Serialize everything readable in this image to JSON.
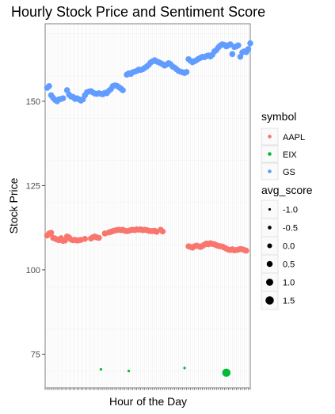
{
  "chart_data": {
    "type": "scatter",
    "title": "Hourly Stock Price and Sentiment Score",
    "xlabel": "Hour of the Day",
    "ylabel": "Stock Price",
    "ylim": [
      65,
      173
    ],
    "xlim": [
      0,
      103
    ],
    "yticks": [
      75,
      100,
      125,
      150
    ],
    "x_tick_labels_shown": false,
    "grid": true,
    "panel_background": "#ffffff",
    "series": [
      {
        "name": "AAPL",
        "color": "#F8766D",
        "points": [
          [
            1,
            110.2
          ],
          [
            2,
            110.8
          ],
          [
            3,
            111.0
          ],
          [
            4,
            109.5
          ],
          [
            5,
            109.3
          ],
          [
            6,
            109.0
          ],
          [
            7,
            108.8
          ],
          [
            8,
            109.4
          ],
          [
            9,
            108.6
          ],
          [
            10,
            108.7
          ],
          [
            11,
            109.9
          ],
          [
            12,
            109.6
          ],
          [
            13,
            109.0
          ],
          [
            14,
            108.8
          ],
          [
            15,
            108.9
          ],
          [
            16,
            108.7
          ],
          [
            17,
            108.8
          ],
          [
            18,
            108.9
          ],
          [
            20,
            109.2
          ],
          [
            23,
            109.3
          ],
          [
            24,
            109.7
          ],
          [
            25,
            109.9
          ],
          [
            26,
            109.6
          ],
          [
            27,
            109.5
          ],
          [
            30,
            110.8
          ],
          [
            32,
            111.1
          ],
          [
            33,
            111.3
          ],
          [
            34,
            111.5
          ],
          [
            35,
            111.7
          ],
          [
            36,
            111.8
          ],
          [
            37,
            111.9
          ],
          [
            38,
            111.8
          ],
          [
            39,
            111.9
          ],
          [
            40,
            111.6
          ],
          [
            41,
            111.5
          ],
          [
            42,
            111.6
          ],
          [
            43,
            111.8
          ],
          [
            44,
            111.9
          ],
          [
            45,
            111.8
          ],
          [
            46,
            112.0
          ],
          [
            47,
            111.9
          ],
          [
            48,
            112.0
          ],
          [
            49,
            111.8
          ],
          [
            50,
            111.9
          ],
          [
            51,
            111.8
          ],
          [
            52,
            111.6
          ],
          [
            53,
            111.5
          ],
          [
            54,
            111.5
          ],
          [
            55,
            111.6
          ],
          [
            56,
            111.3
          ],
          [
            58,
            111.9
          ],
          [
            59,
            111.4
          ],
          [
            72,
            107.0
          ],
          [
            73,
            106.8
          ],
          [
            74,
            106.6
          ],
          [
            75,
            107.0
          ],
          [
            76,
            107.2
          ],
          [
            77,
            107.0
          ],
          [
            78,
            106.8
          ],
          [
            79,
            107.1
          ],
          [
            80,
            107.5
          ],
          [
            81,
            107.8
          ],
          [
            82,
            107.6
          ],
          [
            83,
            107.9
          ],
          [
            84,
            107.7
          ],
          [
            85,
            107.6
          ],
          [
            86,
            107.3
          ],
          [
            87,
            107.1
          ],
          [
            88,
            107.0
          ],
          [
            89,
            106.9
          ],
          [
            90,
            106.6
          ],
          [
            91,
            106.3
          ],
          [
            92,
            106.0
          ],
          [
            93,
            105.9
          ],
          [
            94,
            106.1
          ],
          [
            95,
            105.8
          ],
          [
            96,
            105.9
          ],
          [
            97,
            106.0
          ],
          [
            98,
            106.2
          ],
          [
            99,
            106.1
          ],
          [
            100,
            105.9
          ],
          [
            101,
            105.7
          ]
        ],
        "score": 0.5
      },
      {
        "name": "EIX",
        "color": "#00BA38",
        "points": [
          [
            28,
            70.5,
            -1.0
          ],
          [
            42,
            70.0,
            -1.0
          ],
          [
            70,
            70.9,
            -1.0
          ],
          [
            91,
            69.5,
            1.5
          ]
        ]
      },
      {
        "name": "GS",
        "color": "#619CFF",
        "points": [
          [
            1,
            154.0
          ],
          [
            2,
            154.5
          ],
          [
            3,
            151.8
          ],
          [
            4,
            151.0
          ],
          [
            5,
            150.4
          ],
          [
            6,
            150.0
          ],
          [
            7,
            150.6
          ],
          [
            8,
            150.7
          ],
          [
            9,
            150.9
          ],
          [
            11,
            153.3
          ],
          [
            12,
            152.0
          ],
          [
            13,
            151.4
          ],
          [
            14,
            151.3
          ],
          [
            15,
            150.7
          ],
          [
            16,
            150.9
          ],
          [
            17,
            150.6
          ],
          [
            18,
            150.2
          ],
          [
            19,
            150.6
          ],
          [
            20,
            151.8
          ],
          [
            21,
            152.7
          ],
          [
            22,
            152.9
          ],
          [
            23,
            153.0
          ],
          [
            24,
            152.6
          ],
          [
            25,
            152.3
          ],
          [
            26,
            152.2
          ],
          [
            27,
            152.4
          ],
          [
            28,
            152.2
          ],
          [
            29,
            152.1
          ],
          [
            30,
            152.5
          ],
          [
            31,
            152.4
          ],
          [
            32,
            153.1
          ],
          [
            33,
            153.6
          ],
          [
            34,
            154.5
          ],
          [
            35,
            154.7
          ],
          [
            36,
            154.6
          ],
          [
            37,
            154.2
          ],
          [
            38,
            153.8
          ],
          [
            39,
            153.3
          ],
          [
            41,
            157.9
          ],
          [
            42,
            158.3
          ],
          [
            43,
            158.1
          ],
          [
            44,
            158.6
          ],
          [
            45,
            158.8
          ],
          [
            46,
            159.0
          ],
          [
            47,
            159.4
          ],
          [
            48,
            159.3
          ],
          [
            49,
            159.5
          ],
          [
            50,
            159.9
          ],
          [
            51,
            160.3
          ],
          [
            52,
            160.8
          ],
          [
            53,
            161.5
          ],
          [
            54,
            161.9
          ],
          [
            55,
            162.2
          ],
          [
            56,
            161.8
          ],
          [
            57,
            161.6
          ],
          [
            58,
            161.3
          ],
          [
            59,
            161.0
          ],
          [
            60,
            160.6
          ],
          [
            61,
            160.9
          ],
          [
            62,
            161.3
          ],
          [
            63,
            161.0
          ],
          [
            64,
            160.3
          ],
          [
            65,
            160.0
          ],
          [
            66,
            159.5
          ],
          [
            67,
            159.0
          ],
          [
            68,
            158.8
          ],
          [
            69,
            158.6
          ],
          [
            70,
            158.4
          ],
          [
            71,
            158.7
          ],
          [
            72,
            162.5
          ],
          [
            73,
            162.0
          ],
          [
            74,
            161.6
          ],
          [
            75,
            161.9
          ],
          [
            76,
            162.2
          ],
          [
            77,
            162.6
          ],
          [
            78,
            162.9
          ],
          [
            79,
            163.2
          ],
          [
            80,
            163.1
          ],
          [
            81,
            163.4
          ],
          [
            82,
            163.6
          ],
          [
            83,
            163.3
          ],
          [
            84,
            163.8
          ],
          [
            85,
            164.8
          ],
          [
            86,
            165.2
          ],
          [
            87,
            166.0
          ],
          [
            88,
            166.6
          ],
          [
            89,
            166.9
          ],
          [
            90,
            166.7
          ],
          [
            91,
            166.3
          ],
          [
            92,
            166.6
          ],
          [
            93,
            166.9
          ],
          [
            94,
            164.0
          ],
          [
            95,
            166.1
          ],
          [
            96,
            166.3
          ],
          [
            97,
            166.6
          ],
          [
            98,
            163.2
          ],
          [
            99,
            164.5
          ],
          [
            100,
            164.8
          ],
          [
            101,
            164.6
          ],
          [
            102,
            165.5
          ],
          [
            103,
            167.2
          ]
        ],
        "score": 0.5
      }
    ],
    "legend": {
      "symbol_title": "symbol",
      "symbol_items": [
        {
          "label": "AAPL",
          "color": "#F8766D"
        },
        {
          "label": "EIX",
          "color": "#00BA38"
        },
        {
          "label": "GS",
          "color": "#619CFF"
        }
      ],
      "size_title": "avg_score",
      "size_items": [
        {
          "label": "-1.0",
          "value": -1.0
        },
        {
          "label": "-0.5",
          "value": -0.5
        },
        {
          "label": "0.0",
          "value": 0.0
        },
        {
          "label": "0.5",
          "value": 0.5
        },
        {
          "label": "1.0",
          "value": 1.0
        },
        {
          "label": "1.5",
          "value": 1.5
        }
      ],
      "placement": "right"
    }
  }
}
